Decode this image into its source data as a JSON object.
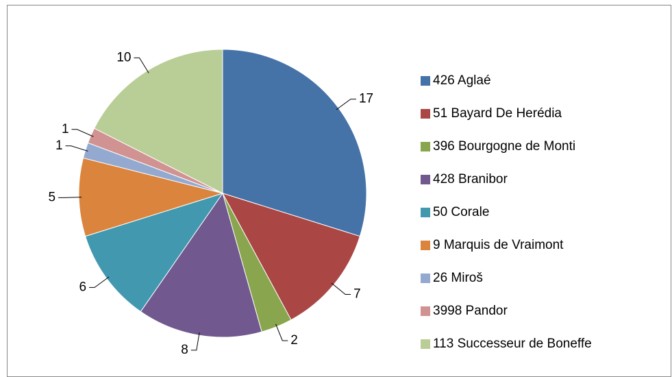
{
  "chart_data": {
    "type": "pie",
    "categories": [
      "426 Aglaé",
      "51 Bayard De Herédia",
      "396 Bourgogne de Monti",
      "428 Branibor",
      "50 Corale",
      "9 Marquis de Vraimont",
      "26 Miroš",
      "3998 Pandor",
      "113 Successeur de Boneffe"
    ],
    "values": [
      17,
      7,
      2,
      8,
      6,
      5,
      1,
      1,
      10
    ],
    "colors": [
      "#4572a7",
      "#aa4643",
      "#89a54e",
      "#71588f",
      "#4198af",
      "#db843d",
      "#93a9cf",
      "#d19392",
      "#b9cd96"
    ],
    "legend": "right"
  }
}
